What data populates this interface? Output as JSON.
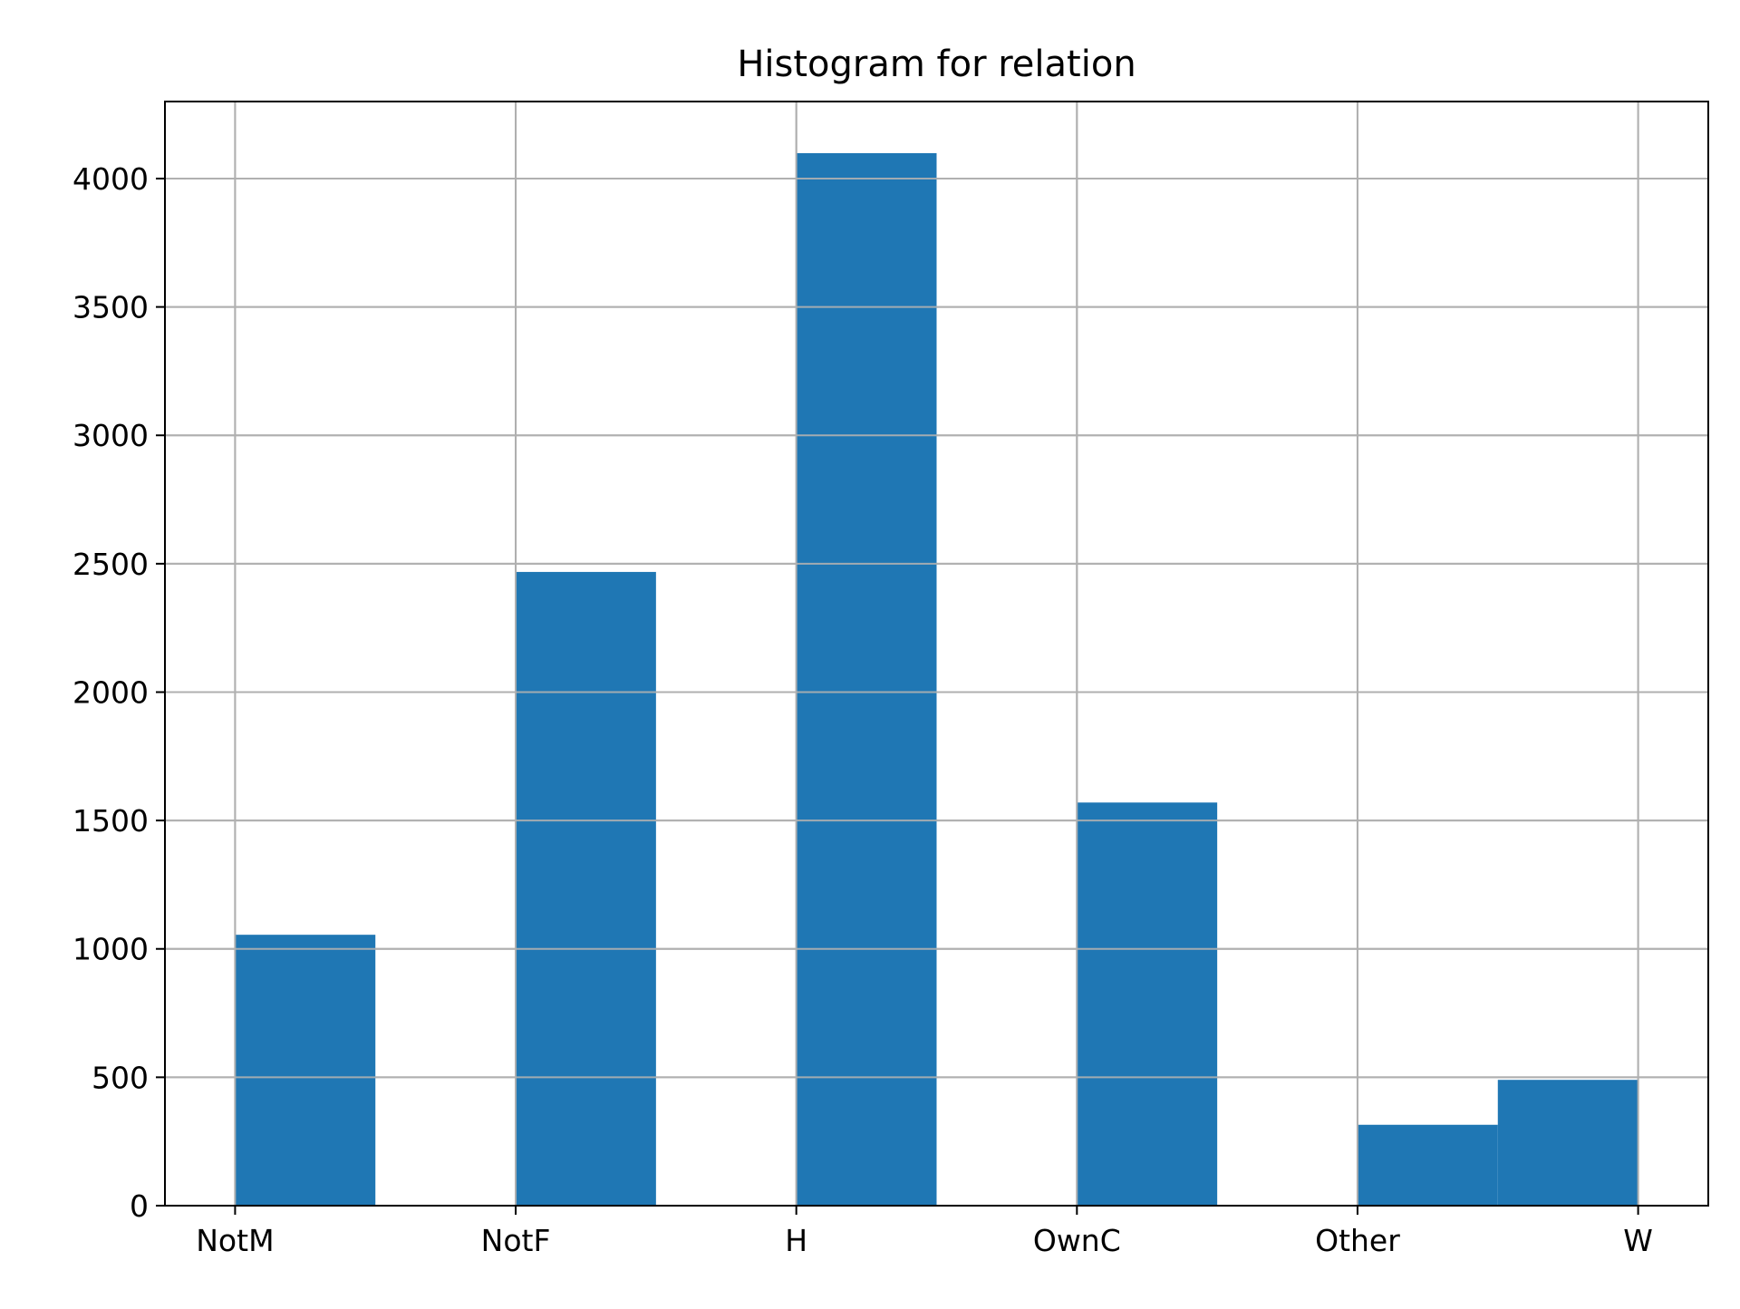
{
  "chart_data": {
    "type": "bar",
    "title": "Histogram for relation",
    "xlabel": "",
    "ylabel": "",
    "categories": [
      "NotM",
      "NotF",
      "H",
      "OwnC",
      "Other",
      "W"
    ],
    "bins": [
      {
        "start": 0.0,
        "end": 0.5,
        "value": 1055
      },
      {
        "start": 0.5,
        "end": 1.0,
        "value": 0
      },
      {
        "start": 1.0,
        "end": 1.5,
        "value": 2468
      },
      {
        "start": 1.5,
        "end": 2.0,
        "value": 0
      },
      {
        "start": 2.0,
        "end": 2.5,
        "value": 4099
      },
      {
        "start": 2.5,
        "end": 3.0,
        "value": 0
      },
      {
        "start": 3.0,
        "end": 3.5,
        "value": 1570
      },
      {
        "start": 3.5,
        "end": 4.0,
        "value": 0
      },
      {
        "start": 4.0,
        "end": 4.5,
        "value": 315
      },
      {
        "start": 4.5,
        "end": 5.0,
        "value": 490
      }
    ],
    "xlim": [
      -0.25,
      5.25
    ],
    "ylim": [
      0,
      4300
    ],
    "yticks": [
      0,
      500,
      1000,
      1500,
      2000,
      2500,
      3000,
      3500,
      4000
    ],
    "grid": true,
    "bar_color": "#1f77b4",
    "grid_color": "#b0b0b0"
  }
}
